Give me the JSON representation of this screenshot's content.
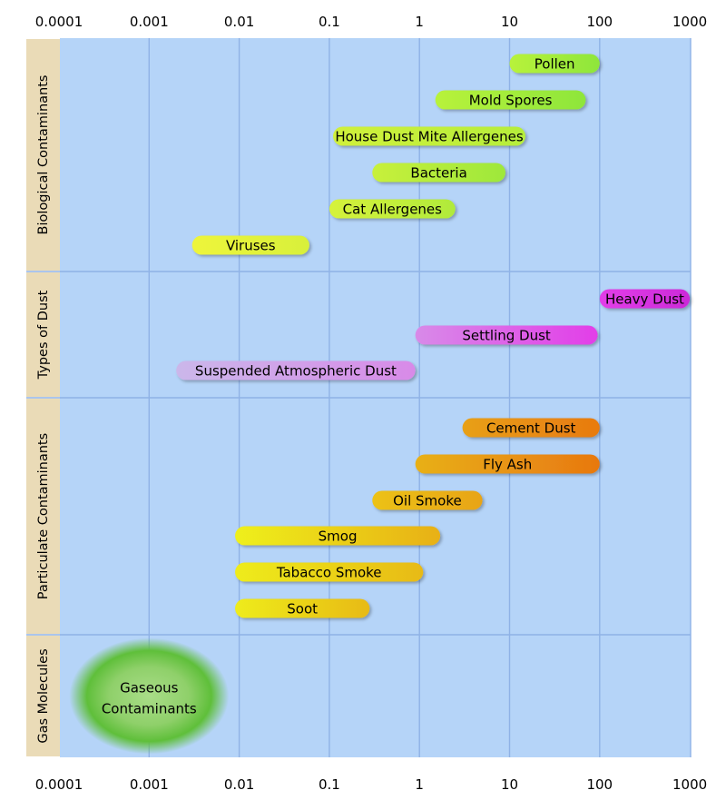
{
  "chart_data": {
    "type": "bar",
    "orientation": "horizontal",
    "x_scale": "log",
    "xlim": [
      0.0001,
      1000
    ],
    "grid": true,
    "tick_labels": [
      "0.0001",
      "0.001",
      "0.01",
      "0.1",
      "1",
      "10",
      "100",
      "1000"
    ],
    "tick_values": [
      0.0001,
      0.001,
      0.01,
      0.1,
      1,
      10,
      100,
      1000
    ],
    "groups": [
      {
        "label": "Biological Contaminants",
        "bars": [
          {
            "label": "Pollen",
            "start": 10,
            "end": 100,
            "colors": [
              "#b8f23a",
              "#8ee63a"
            ]
          },
          {
            "label": "Mold Spores",
            "start": 1.5,
            "end": 70,
            "colors": [
              "#b8f23a",
              "#8ee63a"
            ]
          },
          {
            "label": "House Dust Mite Allergenes",
            "start": 0.11,
            "end": 15,
            "colors": [
              "#d0f03a",
              "#b6ee3a"
            ]
          },
          {
            "label": "Bacteria",
            "start": 0.3,
            "end": 9,
            "colors": [
              "#c8f03a",
              "#9ee83a"
            ]
          },
          {
            "label": "Cat Allergenes",
            "start": 0.1,
            "end": 2.5,
            "colors": [
              "#d6f23a",
              "#b0ea3a"
            ]
          },
          {
            "label": "Viruses",
            "start": 0.003,
            "end": 0.06,
            "colors": [
              "#eef53a",
              "#d8f03a"
            ]
          }
        ]
      },
      {
        "label": "Types of Dust",
        "bars": [
          {
            "label": "Heavy Dust",
            "start": 100,
            "end": 1000,
            "colors": [
              "#e23ee8",
              "#cc2ad8"
            ]
          },
          {
            "label": "Settling Dust",
            "start": 0.9,
            "end": 95,
            "colors": [
              "#d88ae8",
              "#e23ee8"
            ]
          },
          {
            "label": "Suspended Atmospheric Dust",
            "start": 0.002,
            "end": 0.9,
            "colors": [
              "#cbb7ea",
              "#d88ae8"
            ]
          }
        ]
      },
      {
        "label": "Particulate Contaminants",
        "bars": [
          {
            "label": "Cement Dust",
            "start": 3,
            "end": 100,
            "colors": [
              "#e8a018",
              "#e87a10"
            ]
          },
          {
            "label": "Fly Ash",
            "start": 0.9,
            "end": 100,
            "colors": [
              "#e8b018",
              "#e87810"
            ]
          },
          {
            "label": "Oil Smoke",
            "start": 0.3,
            "end": 5,
            "colors": [
              "#ecc218",
              "#e8a418"
            ]
          },
          {
            "label": "Smog",
            "start": 0.009,
            "end": 1.7,
            "colors": [
              "#eef01a",
              "#e8b018"
            ]
          },
          {
            "label": "Tabacco Smoke",
            "start": 0.009,
            "end": 1.1,
            "colors": [
              "#eeec1a",
              "#e8ba18"
            ]
          },
          {
            "label": "Soot",
            "start": 0.009,
            "end": 0.28,
            "colors": [
              "#eeec1a",
              "#e8ba18"
            ]
          }
        ]
      },
      {
        "label": "Gas Molecules",
        "blob": {
          "label_lines": [
            "Gaseous",
            "Contaminants"
          ],
          "center_x": 0.001,
          "color": "#5fbf3a"
        }
      }
    ]
  }
}
